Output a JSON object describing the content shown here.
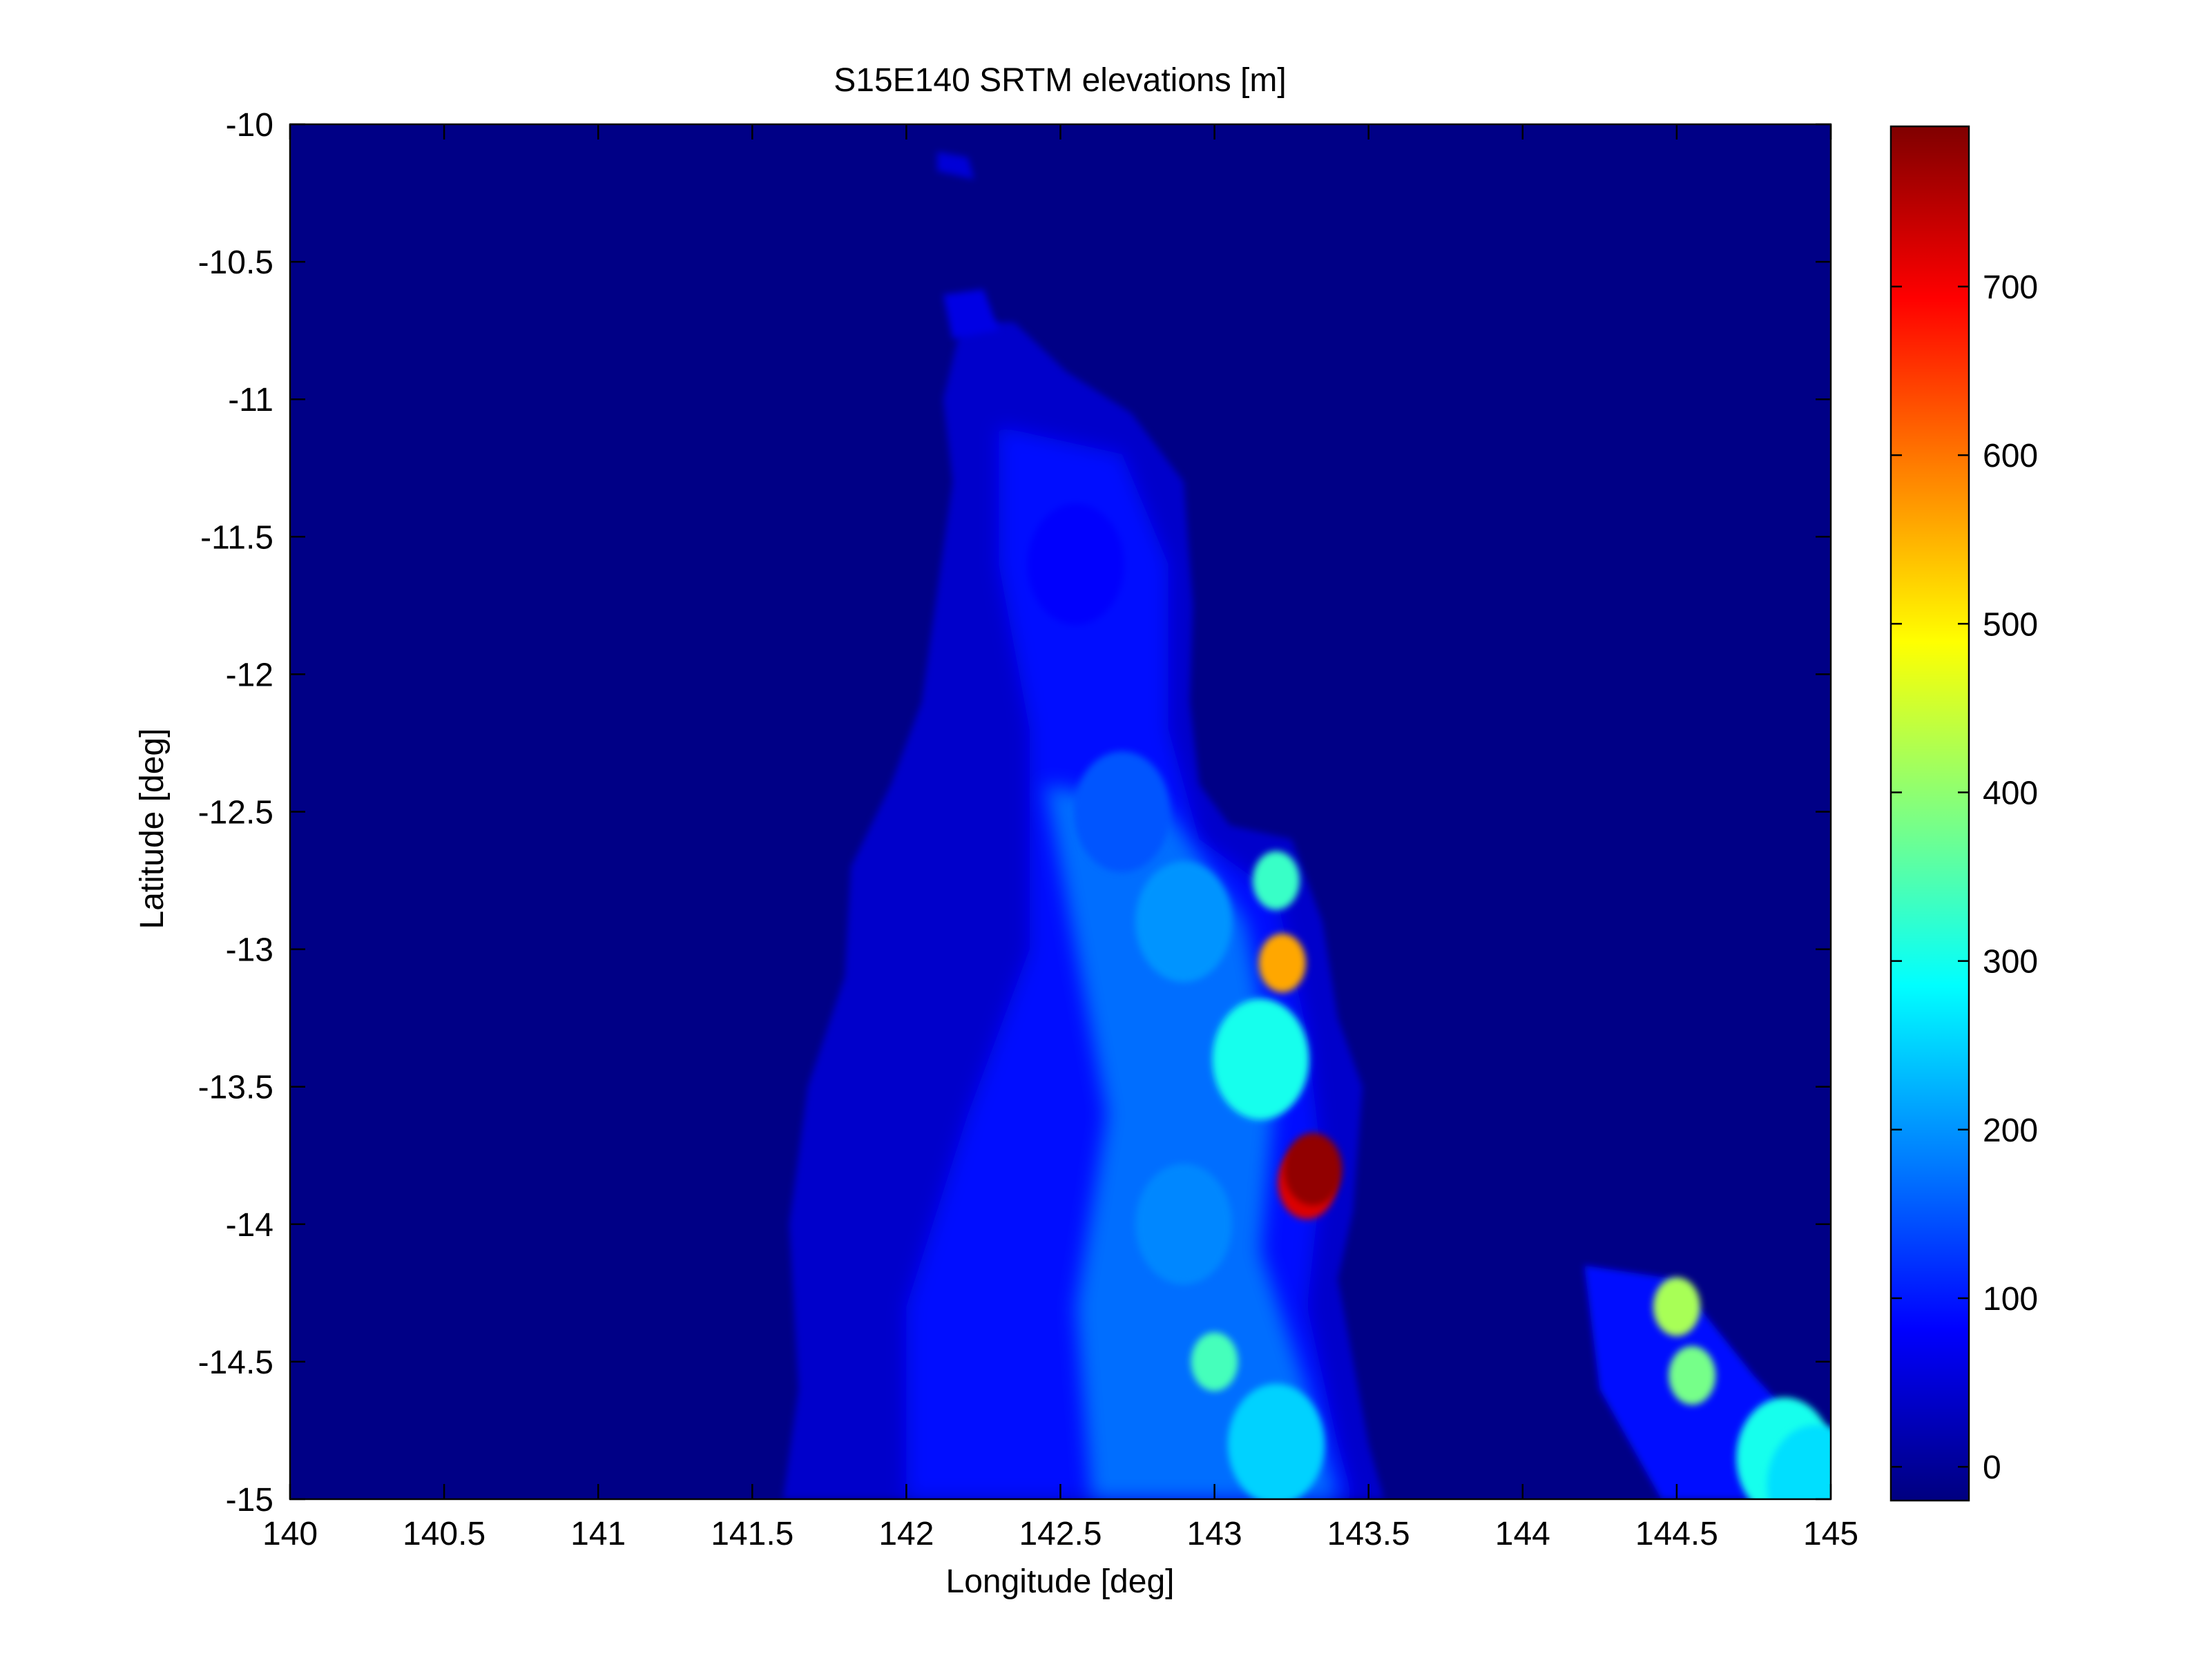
{
  "chart_data": {
    "type": "heatmap",
    "title": "S15E140 SRTM elevations [m]",
    "xlabel": "Longitude [deg]",
    "ylabel": "Latitude [deg]",
    "xlim": [
      140,
      145
    ],
    "ylim": [
      -15,
      -10
    ],
    "x_ticks": [
      140,
      140.5,
      141,
      141.5,
      142,
      142.5,
      143,
      143.5,
      144,
      144.5,
      145
    ],
    "x_tick_labels": [
      "140",
      "140.5",
      "141",
      "141.5",
      "142",
      "142.5",
      "143",
      "143.5",
      "144",
      "144.5",
      "145"
    ],
    "y_ticks": [
      -10,
      -10.5,
      -11,
      -11.5,
      -12,
      -12.5,
      -13,
      -13.5,
      -14,
      -14.5,
      -15
    ],
    "y_tick_labels": [
      "-10",
      "-10.5",
      "-11",
      "-11.5",
      "-12",
      "-12.5",
      "-13",
      "-13.5",
      "-14",
      "-14.5",
      "-15"
    ],
    "colormap": "jet",
    "colorbar": {
      "range": [
        -20,
        795
      ],
      "ticks": [
        0,
        100,
        200,
        300,
        400,
        500,
        600,
        700
      ],
      "tick_labels": [
        "0",
        "100",
        "200",
        "300",
        "400",
        "500",
        "600",
        "700"
      ]
    },
    "background_value": -15,
    "grid": false,
    "elevation_features": [
      {
        "lon": 142.55,
        "lat": -11.6,
        "value": 80
      },
      {
        "lon": 142.7,
        "lat": -12.5,
        "value": 150
      },
      {
        "lon": 142.9,
        "lat": -12.9,
        "value": 200
      },
      {
        "lon": 143.2,
        "lat": -12.75,
        "value": 330
      },
      {
        "lon": 143.22,
        "lat": -13.05,
        "value": 560
      },
      {
        "lon": 143.15,
        "lat": -13.4,
        "value": 300
      },
      {
        "lon": 143.3,
        "lat": -13.85,
        "value": 720
      },
      {
        "lon": 143.32,
        "lat": -13.8,
        "value": 780
      },
      {
        "lon": 142.9,
        "lat": -14.0,
        "value": 190
      },
      {
        "lon": 143.0,
        "lat": -14.5,
        "value": 340
      },
      {
        "lon": 143.2,
        "lat": -14.8,
        "value": 250
      },
      {
        "lon": 144.5,
        "lat": -14.3,
        "value": 420
      },
      {
        "lon": 144.55,
        "lat": -14.55,
        "value": 380
      },
      {
        "lon": 144.85,
        "lat": -14.85,
        "value": 300
      },
      {
        "lon": 144.95,
        "lat": -14.95,
        "value": 260
      }
    ]
  }
}
